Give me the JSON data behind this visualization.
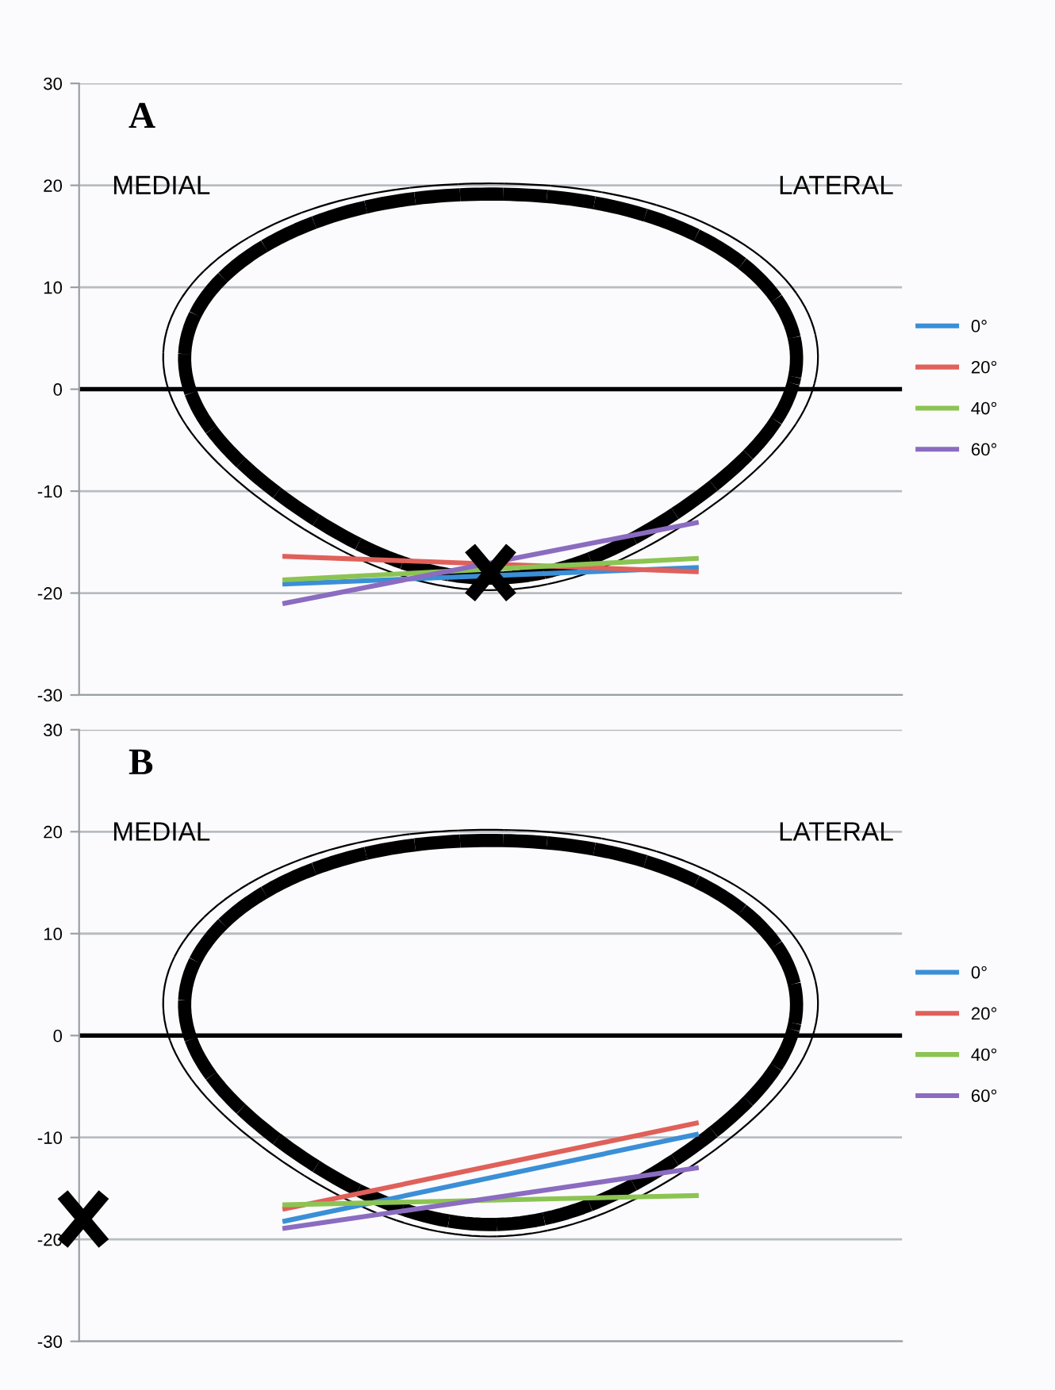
{
  "chart_data": [
    {
      "type": "line",
      "title": "A",
      "categories": [
        null,
        null
      ],
      "ylim": [
        -30,
        30
      ],
      "yticks": [
        -30,
        -20,
        -10,
        0,
        10,
        20,
        30
      ],
      "grid": "y",
      "legend": "right",
      "tick_labels": "y",
      "series": [
        {
          "name": "0°",
          "color": "#3a8fd6",
          "values": [
            -19.1,
            -17.5
          ]
        },
        {
          "name": "20°",
          "color": "#e0605a",
          "values": [
            -16.4,
            -17.9
          ]
        },
        {
          "name": "40°",
          "color": "#8cc453",
          "values": [
            -18.7,
            -16.6
          ]
        },
        {
          "name": "60°",
          "color": "#8b6cc0",
          "values": [
            -21.0,
            -13.1
          ]
        }
      ],
      "ref_lines": [
        {
          "axis": "y",
          "value": 0,
          "color": "#000000"
        }
      ],
      "annotations": [
        "MEDIAL",
        "LATERAL"
      ]
    },
    {
      "type": "line",
      "title": "B",
      "categories": [
        null,
        null
      ],
      "ylim": [
        -30,
        30
      ],
      "yticks": [
        -30,
        -20,
        -10,
        0,
        10,
        20,
        30
      ],
      "grid": "y",
      "legend": "right",
      "tick_labels": "y",
      "series": [
        {
          "name": "0°",
          "color": "#3a8fd6",
          "values": [
            -18.2,
            -9.7
          ]
        },
        {
          "name": "20°",
          "color": "#e0605a",
          "values": [
            -17.0,
            -8.6
          ]
        },
        {
          "name": "40°",
          "color": "#8cc453",
          "values": [
            -16.6,
            -15.7
          ]
        },
        {
          "name": "60°",
          "color": "#8b6cc0",
          "values": [
            -18.9,
            -13.0
          ]
        }
      ],
      "ref_lines": [
        {
          "axis": "y",
          "value": 0,
          "color": "#000000"
        }
      ],
      "annotations": [
        "MEDIAL",
        "LATERAL"
      ]
    }
  ]
}
